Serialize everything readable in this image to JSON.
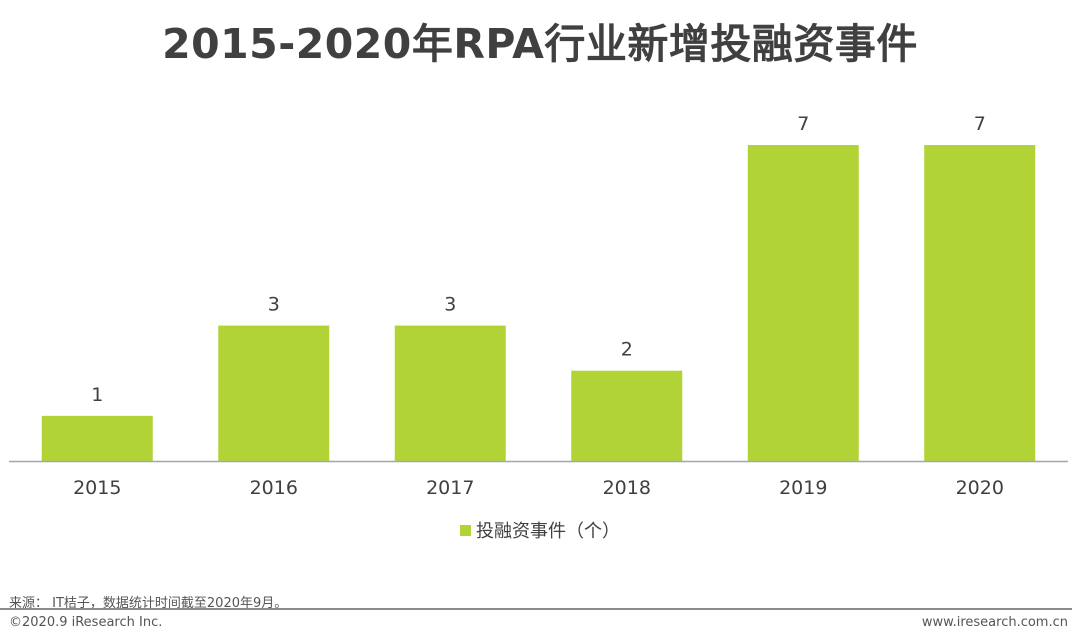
{
  "title": "2015-2020年RPA行业新增投融资事件",
  "chart_data": {
    "type": "bar",
    "categories": [
      "2015",
      "2016",
      "2017",
      "2018",
      "2019",
      "2020"
    ],
    "values": [
      1,
      3,
      3,
      2,
      7,
      7
    ],
    "series": [
      {
        "name": "投融资事件（个）",
        "values": [
          1,
          3,
          3,
          2,
          7,
          7
        ]
      }
    ],
    "xlabel": "",
    "ylabel": "",
    "ylim": [
      0,
      7
    ],
    "grid": false,
    "legend_position": "bottom",
    "bar_color": "#b1d335",
    "axis_color": "#a6a6a6",
    "text_color": "#404040"
  },
  "legend": {
    "label": "投融资事件（个）"
  },
  "footer": {
    "source": "来源： IT桔子，数据统计时间截至2020年9月。",
    "copyright": "©2020.9 iResearch Inc.",
    "url": "www.iresearch.com.cn"
  }
}
